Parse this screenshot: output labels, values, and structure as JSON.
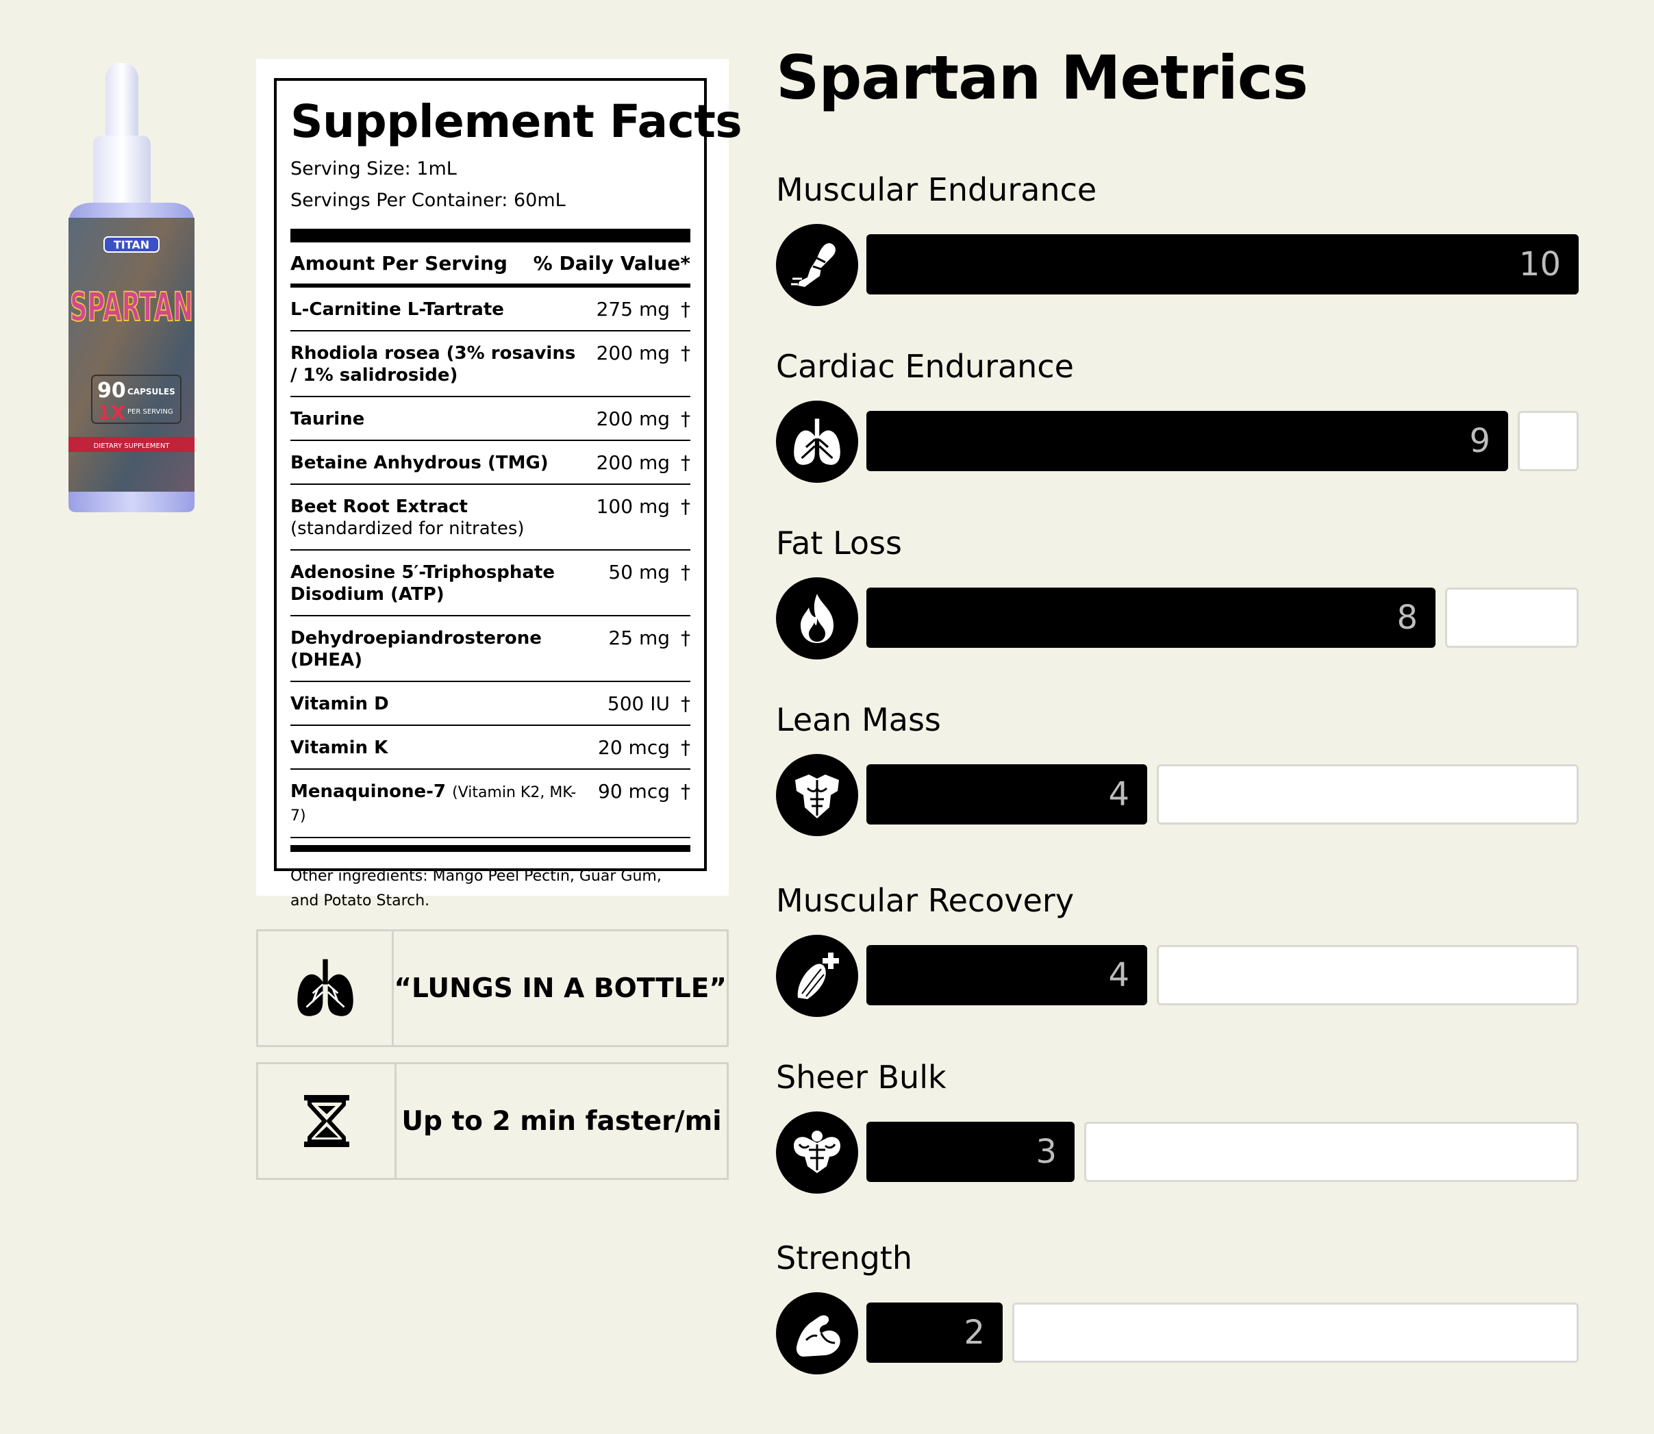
{
  "bottle": {
    "brand": "TITAN",
    "name": "SPARTAN",
    "count": "90",
    "count_unit": "CAPSULES",
    "dose": "1X",
    "dose_unit": "PER SERVING",
    "band": "DIETARY SUPPLEMENT"
  },
  "facts": {
    "title": "Supplement Facts",
    "serving_size": "Serving Size: 1mL",
    "servings_per_container": "Servings Per Container: 60mL",
    "header_left": "Amount Per Serving",
    "header_right": "% Daily Value*",
    "rows": [
      {
        "name": "L-Carnitine L-Tartrate",
        "sub": "",
        "amount": "275 mg",
        "dv": "†"
      },
      {
        "name": "Rhodiola rosea (3% rosavins / 1% salidroside)",
        "sub": "",
        "amount": "200 mg",
        "dv": "†"
      },
      {
        "name": "Taurine",
        "sub": "",
        "amount": "200 mg",
        "dv": "†"
      },
      {
        "name": "Betaine Anhydrous (TMG)",
        "sub": "",
        "amount": "200 mg",
        "dv": "†"
      },
      {
        "name": "Beet Root Extract",
        "sub": "(standardized for nitrates)",
        "amount": "100 mg",
        "dv": "†"
      },
      {
        "name": "Adenosine 5′-Triphosphate Disodium (ATP)",
        "sub": "",
        "amount": "50 mg",
        "dv": "†"
      },
      {
        "name": "Dehydroepiandrosterone (DHEA)",
        "sub": "",
        "amount": "25 mg",
        "dv": "†"
      },
      {
        "name": "Vitamin D",
        "sub": "",
        "amount": "500 IU",
        "dv": "†"
      },
      {
        "name": "Vitamin K",
        "sub": "",
        "amount": "20 mcg",
        "dv": "†"
      },
      {
        "name": "Menaquinone-7",
        "inline_sub": "(Vitamin K2, MK-7)",
        "amount": "90 mcg",
        "dv": "†"
      }
    ],
    "other_ingredients": "Other ingredients: Mango Peel Pectin, Guar Gum, and Potato Starch."
  },
  "features": [
    {
      "icon": "lungs-icon",
      "text": "“LUNGS IN A BOTTLE”"
    },
    {
      "icon": "hourglass-icon",
      "text": "Up to 2 min faster/mi"
    }
  ],
  "metrics": {
    "title": "Spartan Metrics",
    "max": 10,
    "items": [
      {
        "label": "Muscular Endurance",
        "value": 10,
        "icon": "running-leg-icon"
      },
      {
        "label": "Cardiac Endurance",
        "value": 9,
        "icon": "lungs-icon"
      },
      {
        "label": "Fat Loss",
        "value": 8,
        "icon": "flame-icon"
      },
      {
        "label": "Lean Mass",
        "value": 4,
        "icon": "torso-icon"
      },
      {
        "label": "Muscular Recovery",
        "value": 4,
        "icon": "muscle-plus-icon"
      },
      {
        "label": "Sheer Bulk",
        "value": 3,
        "icon": "bulk-torso-icon"
      },
      {
        "label": "Strength",
        "value": 2,
        "icon": "flexed-arm-icon"
      }
    ]
  },
  "colors": {
    "background": "#f3f2e6",
    "bar": "#000000",
    "bar_value_text": "#bdbdbd",
    "empty_track": "#ffffff"
  }
}
